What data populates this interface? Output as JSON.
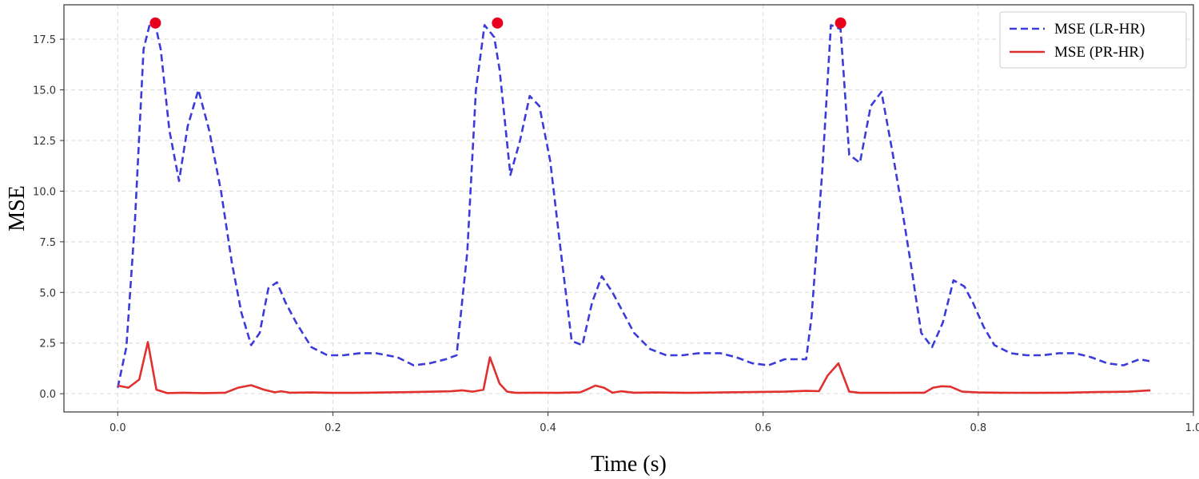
{
  "chart_data": {
    "type": "line",
    "title": "",
    "xlabel": "Time (s)",
    "ylabel": "MSE",
    "xlim": [
      -0.05,
      1.0
    ],
    "ylim": [
      -0.9,
      19.2
    ],
    "x_ticks": [
      0.0,
      0.2,
      0.4,
      0.6,
      0.8,
      1.0
    ],
    "x_tick_labels": [
      "0.0",
      "0.2",
      "0.4",
      "0.6",
      "0.8",
      "1.0"
    ],
    "y_ticks": [
      0.0,
      2.5,
      5.0,
      7.5,
      10.0,
      12.5,
      15.0,
      17.5
    ],
    "y_tick_labels": [
      "0.0",
      "2.5",
      "5.0",
      "7.5",
      "10.0",
      "12.5",
      "15.0",
      "17.5"
    ],
    "grid": true,
    "legend_position": "top-right",
    "series": [
      {
        "name": "MSE (LR-HR)",
        "color": "#3b3bdc",
        "style": "dashed",
        "x": [
          0.0,
          0.008,
          0.016,
          0.024,
          0.03,
          0.035,
          0.04,
          0.048,
          0.057,
          0.065,
          0.075,
          0.085,
          0.096,
          0.106,
          0.115,
          0.124,
          0.132,
          0.14,
          0.148,
          0.156,
          0.166,
          0.18,
          0.195,
          0.21,
          0.225,
          0.24,
          0.26,
          0.275,
          0.29,
          0.305,
          0.315,
          0.325,
          0.333,
          0.341,
          0.35,
          0.355,
          0.365,
          0.374,
          0.383,
          0.392,
          0.402,
          0.412,
          0.422,
          0.432,
          0.441,
          0.45,
          0.46,
          0.47,
          0.48,
          0.495,
          0.51,
          0.525,
          0.54,
          0.56,
          0.575,
          0.59,
          0.605,
          0.62,
          0.64,
          0.645,
          0.655,
          0.663,
          0.672,
          0.68,
          0.69,
          0.7,
          0.71,
          0.72,
          0.728,
          0.737,
          0.747,
          0.757,
          0.767,
          0.777,
          0.787,
          0.795,
          0.805,
          0.815,
          0.83,
          0.845,
          0.86,
          0.875,
          0.89,
          0.905,
          0.92,
          0.935,
          0.95,
          0.96
        ],
        "y": [
          0.3,
          2.3,
          8.5,
          17.0,
          18.3,
          18.2,
          17.0,
          13.0,
          10.5,
          13.2,
          15.0,
          13.0,
          10.0,
          6.5,
          4.0,
          2.4,
          3.0,
          5.2,
          5.5,
          4.5,
          3.5,
          2.3,
          1.9,
          1.9,
          2.0,
          2.0,
          1.8,
          1.4,
          1.5,
          1.7,
          1.9,
          7.0,
          15.0,
          18.2,
          17.6,
          16.0,
          10.8,
          12.5,
          14.7,
          14.2,
          11.5,
          7.0,
          2.6,
          2.4,
          4.5,
          5.8,
          5.0,
          4.0,
          3.0,
          2.2,
          1.9,
          1.9,
          2.0,
          2.0,
          1.8,
          1.5,
          1.4,
          1.7,
          1.7,
          3.8,
          11.0,
          18.2,
          18.0,
          11.8,
          11.4,
          14.2,
          14.9,
          12.0,
          9.5,
          6.5,
          3.0,
          2.3,
          3.5,
          5.6,
          5.3,
          4.5,
          3.3,
          2.4,
          2.0,
          1.9,
          1.9,
          2.0,
          2.0,
          1.8,
          1.5,
          1.4,
          1.7,
          1.6
        ]
      },
      {
        "name": "MSE (PR-HR)",
        "color": "#e03030",
        "style": "solid",
        "x": [
          0.0,
          0.01,
          0.02,
          0.028,
          0.036,
          0.046,
          0.06,
          0.08,
          0.1,
          0.112,
          0.124,
          0.136,
          0.146,
          0.152,
          0.16,
          0.18,
          0.2,
          0.22,
          0.25,
          0.28,
          0.31,
          0.32,
          0.33,
          0.34,
          0.346,
          0.355,
          0.362,
          0.37,
          0.39,
          0.41,
          0.43,
          0.438,
          0.444,
          0.452,
          0.46,
          0.468,
          0.48,
          0.5,
          0.53,
          0.56,
          0.59,
          0.62,
          0.64,
          0.652,
          0.66,
          0.67,
          0.68,
          0.69,
          0.72,
          0.75,
          0.758,
          0.766,
          0.774,
          0.785,
          0.8,
          0.82,
          0.85,
          0.88,
          0.91,
          0.94,
          0.96
        ],
        "y": [
          0.4,
          0.3,
          0.7,
          2.55,
          0.2,
          0.03,
          0.05,
          0.03,
          0.05,
          0.3,
          0.42,
          0.2,
          0.07,
          0.12,
          0.05,
          0.06,
          0.04,
          0.04,
          0.06,
          0.09,
          0.12,
          0.17,
          0.1,
          0.2,
          1.8,
          0.5,
          0.1,
          0.04,
          0.05,
          0.04,
          0.07,
          0.25,
          0.4,
          0.3,
          0.05,
          0.12,
          0.05,
          0.06,
          0.04,
          0.06,
          0.08,
          0.1,
          0.14,
          0.13,
          0.9,
          1.5,
          0.1,
          0.04,
          0.04,
          0.05,
          0.3,
          0.37,
          0.35,
          0.1,
          0.06,
          0.05,
          0.04,
          0.05,
          0.08,
          0.1,
          0.17
        ]
      }
    ],
    "peak_markers": {
      "color": "#e8001c",
      "x": [
        0.035,
        0.353,
        0.672
      ],
      "y": [
        18.3,
        18.3,
        18.3
      ]
    }
  }
}
